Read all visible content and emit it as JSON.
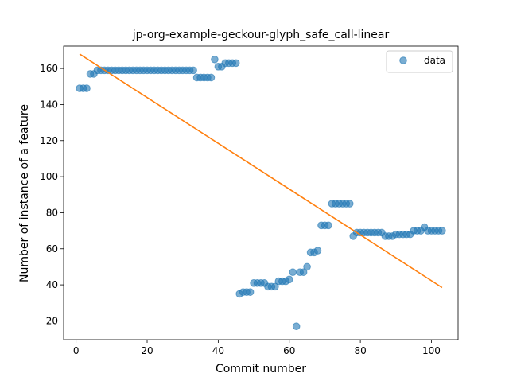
{
  "chart_data": {
    "type": "scatter",
    "title": "jp-org-example-geckour-glyph_safe_call-linear",
    "xlabel": "Commit number",
    "ylabel": "Number of instance of a feature",
    "xlim": [
      -3.5,
      107.5
    ],
    "ylim": [
      9.6,
      172.4
    ],
    "xticks": [
      0,
      20,
      40,
      60,
      80,
      100
    ],
    "yticks": [
      20,
      40,
      60,
      80,
      100,
      120,
      140,
      160
    ],
    "grid": false,
    "legend": {
      "placement": "top-right",
      "entries": [
        "data"
      ]
    },
    "series": [
      {
        "name": "data",
        "kind": "points",
        "color": "#1f77b4",
        "x": [
          1,
          2,
          3,
          4,
          5,
          6,
          7,
          8,
          9,
          10,
          11,
          12,
          13,
          14,
          15,
          16,
          17,
          18,
          19,
          20,
          21,
          22,
          23,
          24,
          25,
          26,
          27,
          28,
          29,
          30,
          31,
          32,
          33,
          34,
          35,
          36,
          37,
          38,
          39,
          40,
          41,
          42,
          43,
          44,
          45,
          46,
          47,
          48,
          49,
          50,
          51,
          52,
          53,
          54,
          55,
          56,
          57,
          58,
          59,
          60,
          61,
          62,
          63,
          64,
          65,
          66,
          67,
          68,
          69,
          70,
          71,
          72,
          73,
          74,
          75,
          76,
          77,
          78,
          79,
          80,
          81,
          82,
          83,
          84,
          85,
          86,
          87,
          88,
          89,
          90,
          91,
          92,
          93,
          94,
          95,
          96,
          97,
          98,
          99,
          100,
          101,
          102,
          103
        ],
        "y": [
          149,
          149,
          149,
          157,
          157,
          159,
          159,
          159,
          159,
          159,
          159,
          159,
          159,
          159,
          159,
          159,
          159,
          159,
          159,
          159,
          159,
          159,
          159,
          159,
          159,
          159,
          159,
          159,
          159,
          159,
          159,
          159,
          159,
          155,
          155,
          155,
          155,
          155,
          165,
          161,
          161,
          163,
          163,
          163,
          163,
          35,
          36,
          36,
          36,
          41,
          41,
          41,
          41,
          39,
          39,
          39,
          42,
          42,
          42,
          43,
          47,
          17,
          47,
          47,
          50,
          58,
          58,
          59,
          73,
          73,
          73,
          85,
          85,
          85,
          85,
          85,
          85,
          67,
          69,
          69,
          69,
          69,
          69,
          69,
          69,
          69,
          67,
          67,
          67,
          68,
          68,
          68,
          68,
          68,
          70,
          70,
          70,
          72,
          70,
          70,
          70,
          70,
          70
        ]
      },
      {
        "name": "",
        "kind": "line",
        "color": "#ff7f0e",
        "x": [
          1,
          103
        ],
        "y": [
          168,
          38.5
        ]
      }
    ]
  }
}
